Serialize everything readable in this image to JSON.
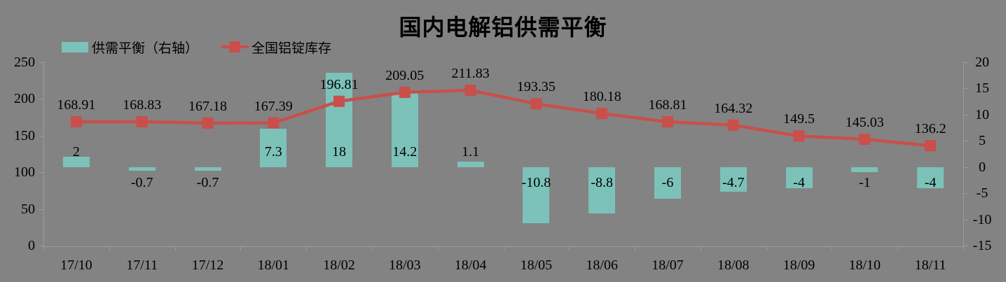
{
  "chart_data": {
    "type": "combo",
    "title": "国内电解铝供需平衡",
    "categories": [
      "17/10",
      "17/11",
      "17/12",
      "18/01",
      "18/02",
      "18/03",
      "18/04",
      "18/05",
      "18/06",
      "18/07",
      "18/08",
      "18/09",
      "18/10",
      "18/11"
    ],
    "series": [
      {
        "name": "供需平衡（右轴）",
        "type": "bar",
        "axis": "right",
        "color": "#7CC2B9",
        "values": [
          2,
          -0.7,
          -0.7,
          7.3,
          18,
          14.2,
          1.1,
          -10.8,
          -8.8,
          -6,
          -4.7,
          -4,
          -1,
          -4
        ],
        "labels": [
          "2",
          "-0.7",
          "-0.7",
          "7.3",
          "18",
          "14.2",
          "1.1",
          "-10.8",
          "-8.8",
          "-6",
          "-4.7",
          "-4",
          "-1",
          "-4"
        ]
      },
      {
        "name": "全国铝锭库存",
        "type": "line",
        "axis": "left",
        "color": "#C94F4B",
        "values": [
          168.91,
          168.83,
          167.18,
          167.39,
          196.81,
          209.05,
          211.83,
          193.35,
          180.18,
          168.81,
          164.32,
          149.5,
          145.03,
          136.2
        ],
        "labels": [
          "168.91",
          "168.83",
          "167.18",
          "167.39",
          "196.81",
          "209.05",
          "211.83",
          "193.35",
          "180.18",
          "168.81",
          "164.32",
          "149.5",
          "145.03",
          "136.2"
        ]
      }
    ],
    "left_axis": {
      "range": [
        0,
        250
      ],
      "tick_values": [
        0,
        50,
        100,
        150,
        200,
        250
      ],
      "tick_labels": [
        "0",
        "50",
        "100",
        "150",
        "200",
        "250"
      ]
    },
    "right_axis": {
      "range": [
        -15,
        20
      ],
      "tick_values": [
        -15,
        -10,
        -5,
        0,
        5,
        10,
        15,
        20
      ],
      "tick_labels": [
        "-15",
        "-10",
        "-5",
        "0",
        "5",
        "10",
        "15",
        "20"
      ]
    },
    "legend_position": "top-left",
    "gridlines": "none",
    "colors": {
      "background": "#838383",
      "axis_line": "#9C9C9C",
      "text": "#000000"
    }
  }
}
